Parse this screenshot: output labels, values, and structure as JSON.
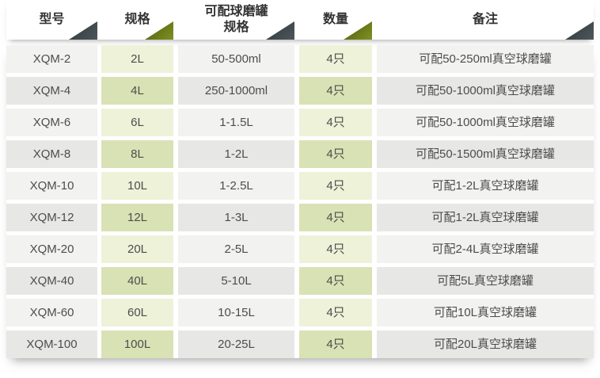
{
  "table": {
    "columns": [
      {
        "label": "型号",
        "label2": "",
        "accent": "dark"
      },
      {
        "label": "规格",
        "label2": "",
        "accent": "olive"
      },
      {
        "label": "可配球磨罐",
        "label2": "规格",
        "accent": "dark"
      },
      {
        "label": "数量",
        "label2": "",
        "accent": "olive"
      },
      {
        "label": "备注",
        "label2": "",
        "accent": "dark"
      }
    ],
    "rows": [
      {
        "model": "XQM-2",
        "spec": "2L",
        "jar_spec": "50-500ml",
        "qty": "4只",
        "note": "可配50-250ml真空球磨罐"
      },
      {
        "model": "XQM-4",
        "spec": "4L",
        "jar_spec": "250-1000ml",
        "qty": "4只",
        "note": "可配50-1000ml真空球磨罐"
      },
      {
        "model": "XQM-6",
        "spec": "6L",
        "jar_spec": "1-1.5L",
        "qty": "4只",
        "note": "可配50-1000ml真空球磨罐"
      },
      {
        "model": "XQM-8",
        "spec": "8L",
        "jar_spec": "1-2L",
        "qty": "4只",
        "note": "可配50-1500ml真空球磨罐"
      },
      {
        "model": "XQM-10",
        "spec": "10L",
        "jar_spec": "1-2.5L",
        "qty": "4只",
        "note": "可配1-2L真空球磨罐"
      },
      {
        "model": "XQM-12",
        "spec": "12L",
        "jar_spec": "1-3L",
        "qty": "4只",
        "note": "可配1-2L真空球磨罐"
      },
      {
        "model": "XQM-20",
        "spec": "20L",
        "jar_spec": "2-5L",
        "qty": "4只",
        "note": "可配2-4L真空球磨罐"
      },
      {
        "model": "XQM-40",
        "spec": "40L",
        "jar_spec": "5-10L",
        "qty": "4只",
        "note": "可配5L真空球磨罐"
      },
      {
        "model": "XQM-60",
        "spec": "60L",
        "jar_spec": "10-15L",
        "qty": "4只",
        "note": "可配10L真空球磨罐"
      },
      {
        "model": "XQM-100",
        "spec": "100L",
        "jar_spec": "20-25L",
        "qty": "4只",
        "note": "可配20L真空球磨罐"
      }
    ],
    "colors": {
      "dark_triangle_start": "#2f373a",
      "dark_triangle_end": "#4d575b",
      "olive_triangle_start": "#4d5b0e",
      "olive_triangle_end": "#7e9122",
      "row_gray_odd": "#f2f2f1",
      "row_gray_even": "#e7e7e5",
      "row_green_odd": "#eef2d9",
      "row_green_even": "#d9e2b4",
      "header_text": "#333333",
      "cell_text": "#4d4d4d"
    }
  }
}
